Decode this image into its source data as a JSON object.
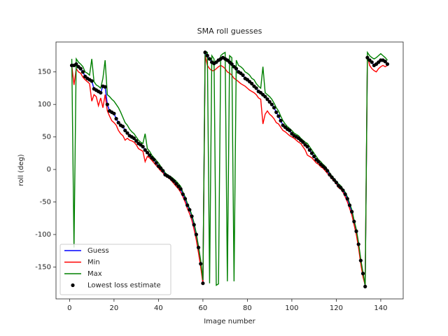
{
  "chart_data": {
    "type": "line",
    "title": "SMA roll guesses",
    "x_label": "Image number",
    "y_label": "roll (deg)",
    "xlim": [
      -6.1,
      150.1
    ],
    "ylim": [
      -199,
      196
    ],
    "xticks": [
      0,
      20,
      40,
      60,
      80,
      100,
      120,
      140
    ],
    "yticks": [
      -150,
      -100,
      -50,
      0,
      50,
      100,
      150
    ],
    "legend": "lower left",
    "grid": false,
    "x": [
      1,
      2,
      3,
      4,
      5,
      6,
      7,
      8,
      9,
      10,
      11,
      12,
      13,
      14,
      15,
      16,
      17,
      18,
      19,
      20,
      21,
      22,
      23,
      24,
      25,
      26,
      27,
      28,
      29,
      30,
      31,
      32,
      33,
      34,
      35,
      36,
      37,
      38,
      39,
      40,
      41,
      42,
      43,
      44,
      45,
      46,
      47,
      48,
      49,
      50,
      51,
      52,
      53,
      54,
      55,
      56,
      57,
      58,
      59,
      60,
      61,
      62,
      63,
      64,
      65,
      66,
      67,
      68,
      69,
      70,
      71,
      72,
      73,
      74,
      75,
      76,
      77,
      78,
      79,
      80,
      81,
      82,
      83,
      84,
      85,
      86,
      87,
      88,
      89,
      90,
      91,
      92,
      93,
      94,
      95,
      96,
      97,
      98,
      99,
      100,
      101,
      102,
      103,
      104,
      105,
      106,
      107,
      108,
      109,
      110,
      111,
      112,
      113,
      114,
      115,
      116,
      117,
      118,
      119,
      120,
      121,
      122,
      123,
      124,
      125,
      126,
      127,
      128,
      129,
      130,
      131,
      132,
      133,
      134,
      135,
      136,
      137,
      138,
      139,
      140,
      141,
      142,
      143
    ],
    "series": [
      {
        "name": "Guess",
        "color": "#0000ff",
        "style": "line",
        "values": [
          160,
          160,
          162,
          158,
          155,
          150,
          143,
          140,
          138,
          136,
          124,
          122,
          120,
          118,
          128,
          127,
          100,
          90,
          88,
          86,
          78,
          72,
          68,
          66,
          60,
          56,
          52,
          50,
          48,
          44,
          40,
          38,
          35,
          30,
          26,
          22,
          18,
          15,
          10,
          5,
          2,
          -2,
          -8,
          -10,
          -12,
          -15,
          -18,
          -22,
          -26,
          -30,
          -38,
          -45,
          -55,
          -62,
          -72,
          -85,
          -100,
          -120,
          -145,
          -175,
          180,
          175,
          170,
          165,
          163,
          165,
          168,
          170,
          172,
          170,
          168,
          165,
          162,
          158,
          155,
          150,
          148,
          145,
          140,
          138,
          135,
          132,
          128,
          125,
          120,
          118,
          115,
          112,
          108,
          104,
          100,
          95,
          88,
          82,
          75,
          68,
          65,
          62,
          60,
          55,
          52,
          50,
          48,
          45,
          42,
          38,
          35,
          30,
          25,
          20,
          15,
          12,
          8,
          5,
          2,
          -2,
          -8,
          -12,
          -16,
          -20,
          -25,
          -28,
          -32,
          -38,
          -45,
          -55,
          -65,
          -80,
          -95,
          -115,
          -140,
          -160,
          -180,
          172,
          168,
          165,
          160,
          162,
          165,
          168,
          168,
          166,
          162
        ]
      },
      {
        "name": "Min",
        "color": "#ff0000",
        "style": "line",
        "values": [
          160,
          130,
          155,
          150,
          148,
          142,
          138,
          135,
          132,
          105,
          115,
          112,
          98,
          110,
          95,
          115,
          90,
          82,
          75,
          72,
          68,
          60,
          55,
          52,
          45,
          48,
          45,
          44,
          42,
          38,
          32,
          30,
          28,
          12,
          20,
          18,
          14,
          10,
          6,
          2,
          -2,
          -5,
          -10,
          -12,
          -14,
          -18,
          -22,
          -26,
          -30,
          -35,
          -42,
          -50,
          -60,
          -68,
          -78,
          -92,
          -108,
          -128,
          -150,
          -175,
          175,
          160,
          155,
          152,
          152,
          155,
          158,
          160,
          158,
          155,
          150,
          148,
          145,
          140,
          138,
          135,
          132,
          130,
          128,
          125,
          122,
          120,
          118,
          115,
          110,
          108,
          70,
          85,
          90,
          85,
          82,
          78,
          72,
          70,
          65,
          60,
          58,
          55,
          52,
          50,
          48,
          45,
          42,
          40,
          35,
          30,
          22,
          20,
          18,
          14,
          10,
          8,
          4,
          2,
          -2,
          -6,
          -10,
          -14,
          -18,
          -22,
          -28,
          -30,
          -35,
          -42,
          -50,
          -60,
          -70,
          -85,
          -100,
          -120,
          -145,
          -165,
          -178,
          175,
          160,
          155,
          152,
          150,
          155,
          158,
          160,
          158,
          160
        ]
      },
      {
        "name": "Max",
        "color": "#008000",
        "style": "line",
        "values": [
          170,
          -120,
          170,
          165,
          162,
          158,
          150,
          148,
          145,
          170,
          135,
          130,
          128,
          125,
          140,
          168,
          115,
          112,
          108,
          105,
          100,
          95,
          88,
          80,
          72,
          68,
          62,
          58,
          55,
          50,
          45,
          42,
          40,
          55,
          32,
          28,
          22,
          18,
          14,
          10,
          5,
          0,
          -5,
          -8,
          -10,
          -12,
          -15,
          -18,
          -22,
          -26,
          -35,
          -42,
          -52,
          -60,
          -70,
          -82,
          -98,
          -118,
          -140,
          -170,
          182,
          180,
          -175,
          175,
          170,
          -178,
          -176,
          175,
          178,
          180,
          -172,
          175,
          172,
          -172,
          168,
          160,
          158,
          155,
          150,
          148,
          145,
          140,
          138,
          132,
          128,
          125,
          158,
          118,
          115,
          112,
          108,
          102,
          95,
          90,
          82,
          75,
          70,
          66,
          63,
          60,
          56,
          54,
          52,
          48,
          45,
          42,
          40,
          35,
          30,
          25,
          20,
          15,
          12,
          8,
          5,
          0,
          -5,
          -10,
          -14,
          -18,
          -22,
          -25,
          -30,
          -35,
          -42,
          -52,
          -62,
          -78,
          -92,
          -112,
          -138,
          -158,
          -178,
          180,
          175,
          172,
          170,
          172,
          175,
          178,
          175,
          172,
          168
        ]
      },
      {
        "name": "Lowest loss estimate",
        "color": "#000000",
        "style": "scatter",
        "values": [
          160,
          160,
          162,
          158,
          155,
          150,
          143,
          140,
          138,
          136,
          124,
          122,
          120,
          118,
          128,
          127,
          100,
          90,
          88,
          86,
          78,
          72,
          68,
          66,
          60,
          56,
          52,
          50,
          48,
          44,
          40,
          38,
          35,
          30,
          26,
          22,
          18,
          15,
          10,
          5,
          2,
          -2,
          -8,
          -10,
          -12,
          -15,
          -18,
          -22,
          -26,
          -30,
          -38,
          -45,
          -55,
          -62,
          -72,
          -85,
          -100,
          -120,
          -145,
          -175,
          180,
          175,
          170,
          165,
          163,
          165,
          168,
          170,
          172,
          170,
          168,
          165,
          162,
          158,
          155,
          150,
          148,
          145,
          140,
          138,
          135,
          132,
          128,
          125,
          120,
          118,
          115,
          112,
          108,
          104,
          100,
          95,
          88,
          82,
          75,
          68,
          65,
          62,
          60,
          55,
          52,
          50,
          48,
          45,
          42,
          38,
          35,
          30,
          25,
          20,
          15,
          12,
          8,
          5,
          2,
          -2,
          -8,
          -12,
          -16,
          -20,
          -25,
          -28,
          -32,
          -38,
          -45,
          -55,
          -65,
          -80,
          -95,
          -115,
          -140,
          -160,
          -180,
          172,
          168,
          165,
          160,
          162,
          165,
          168,
          168,
          166,
          162
        ]
      }
    ]
  }
}
